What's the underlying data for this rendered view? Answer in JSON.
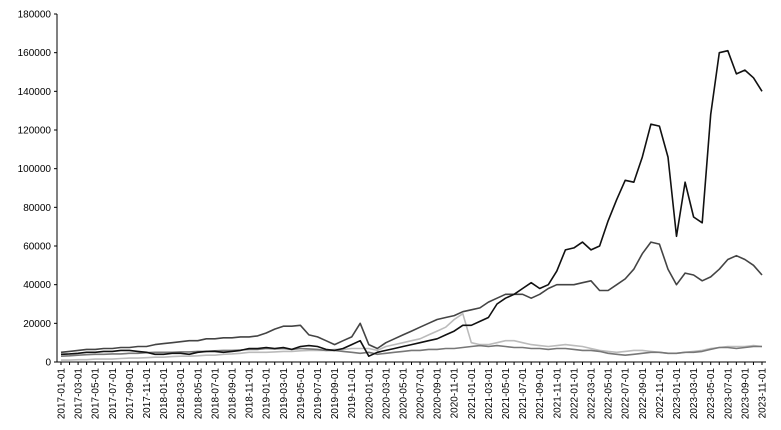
{
  "chart_data": {
    "type": "line",
    "categories": [
      "2017-01-01",
      null,
      "2017-03-01",
      null,
      "2017-05-01",
      null,
      "2017-07-01",
      null,
      "2017-09-01",
      null,
      "2017-11-01",
      null,
      "2018-01-01",
      null,
      "2018-03-01",
      null,
      "2018-05-01",
      null,
      "2018-07-01",
      null,
      "2018-09-01",
      null,
      "2018-11-01",
      null,
      "2019-01-01",
      null,
      "2019-03-01",
      null,
      "2019-05-01",
      null,
      "2019-07-01",
      null,
      "2019-09-01",
      null,
      "2019-11-01",
      null,
      "2020-01-01",
      null,
      "2020-03-01",
      null,
      "2020-05-01",
      null,
      "2020-07-01",
      null,
      "2020-09-01",
      null,
      "2020-11-01",
      null,
      "2021-01-01",
      null,
      "2021-03-01",
      null,
      "2021-05-01",
      null,
      "2021-07-01",
      null,
      "2021-09-01",
      null,
      "2021-11-01",
      null,
      "2022-01-01",
      null,
      "2022-03-01",
      null,
      "2022-05-01",
      null,
      "2022-07-01",
      null,
      "2022-09-01",
      null,
      "2022-11-01",
      null,
      "2023-01-01",
      null,
      "2023-03-01",
      null,
      "2023-05-01",
      null,
      "2023-07-01",
      null,
      "2023-09-01",
      null,
      "2023-11-01"
    ],
    "series": [
      {
        "color": "#bbbbbb",
        "values": [
          1000,
          1000,
          1200,
          1200,
          1500,
          1500,
          1500,
          1800,
          2000,
          2000,
          2200,
          2500,
          2500,
          2800,
          3000,
          3000,
          3200,
          3500,
          3500,
          4000,
          4200,
          4500,
          5000,
          5000,
          5000,
          5200,
          5500,
          5500,
          5800,
          6000,
          6000,
          6000,
          6500,
          6500,
          7000,
          7000,
          7000,
          6000,
          8000,
          9000,
          10000,
          11000,
          12000,
          14000,
          16000,
          18000,
          22000,
          25000,
          10000,
          9000,
          9000,
          10000,
          11000,
          11000,
          10000,
          9000,
          8500,
          8000,
          8500,
          9000,
          8500,
          8000,
          7000,
          6000,
          5500,
          5000,
          5500,
          6000,
          6000,
          5500,
          5000,
          4500,
          4500,
          5000,
          5500,
          6000,
          7000,
          7500,
          8000,
          8000,
          8000,
          8500,
          8000
        ]
      },
      {
        "color": "#777777",
        "values": [
          3000,
          3200,
          3500,
          3800,
          4000,
          4000,
          4200,
          4200,
          4500,
          4500,
          4800,
          5000,
          5000,
          5000,
          5200,
          5200,
          5500,
          5500,
          5800,
          6000,
          6000,
          6200,
          6500,
          6500,
          7000,
          6800,
          7000,
          6500,
          7000,
          6800,
          6500,
          6000,
          6000,
          5500,
          5000,
          4500,
          5000,
          4000,
          4500,
          5000,
          5500,
          6000,
          6000,
          6500,
          6500,
          7000,
          7000,
          7500,
          8000,
          8500,
          8000,
          8500,
          8000,
          7500,
          7500,
          7000,
          7000,
          6500,
          7000,
          7000,
          6500,
          6000,
          6000,
          5500,
          4500,
          4000,
          3500,
          4000,
          4500,
          5000,
          5000,
          4500,
          4500,
          5000,
          5000,
          5500,
          6500,
          7500,
          7500,
          7000,
          7500,
          8000,
          8000
        ]
      },
      {
        "color": "#444444",
        "values": [
          5000,
          5500,
          6000,
          6500,
          6500,
          7000,
          7000,
          7500,
          7500,
          8000,
          8000,
          9000,
          9500,
          10000,
          10500,
          11000,
          11000,
          12000,
          12000,
          12500,
          12500,
          13000,
          13000,
          13500,
          15000,
          17000,
          18500,
          18500,
          19000,
          14000,
          13000,
          11000,
          9000,
          11000,
          13000,
          20000,
          9000,
          7000,
          10000,
          12000,
          14000,
          16000,
          18000,
          20000,
          22000,
          23000,
          24000,
          26000,
          27000,
          28000,
          31000,
          33000,
          35000,
          35000,
          35000,
          33000,
          35000,
          38000,
          40000,
          40000,
          40000,
          41000,
          42000,
          37000,
          37000,
          40000,
          43000,
          48000,
          56000,
          62000,
          61000,
          48000,
          40000,
          46000,
          45000,
          42000,
          44000,
          48000,
          53000,
          55000,
          53000,
          50000,
          45000
        ]
      },
      {
        "color": "#111111",
        "values": [
          4000,
          4200,
          4500,
          5000,
          5000,
          5500,
          5500,
          6000,
          6000,
          5500,
          5000,
          4000,
          4000,
          4500,
          4500,
          4000,
          5000,
          5500,
          5500,
          5000,
          5500,
          6000,
          7000,
          7000,
          7500,
          7000,
          7500,
          6500,
          8000,
          8500,
          8000,
          6500,
          6000,
          7000,
          9000,
          11000,
          3000,
          5000,
          6000,
          7000,
          8000,
          9000,
          10000,
          11000,
          12000,
          14000,
          16000,
          19000,
          19000,
          21000,
          23000,
          30000,
          33000,
          35000,
          38000,
          41000,
          38000,
          40000,
          47000,
          58000,
          59000,
          62000,
          58000,
          60000,
          73000,
          84000,
          94000,
          93000,
          106000,
          123000,
          122000,
          106000,
          65000,
          93000,
          75000,
          72000,
          128000,
          160000,
          161000,
          149000,
          151000,
          147000,
          140000
        ]
      }
    ],
    "ylim": [
      0,
      180000
    ],
    "yticks": [
      0,
      20000,
      40000,
      60000,
      80000,
      100000,
      120000,
      140000,
      160000,
      180000
    ],
    "grid": false
  }
}
